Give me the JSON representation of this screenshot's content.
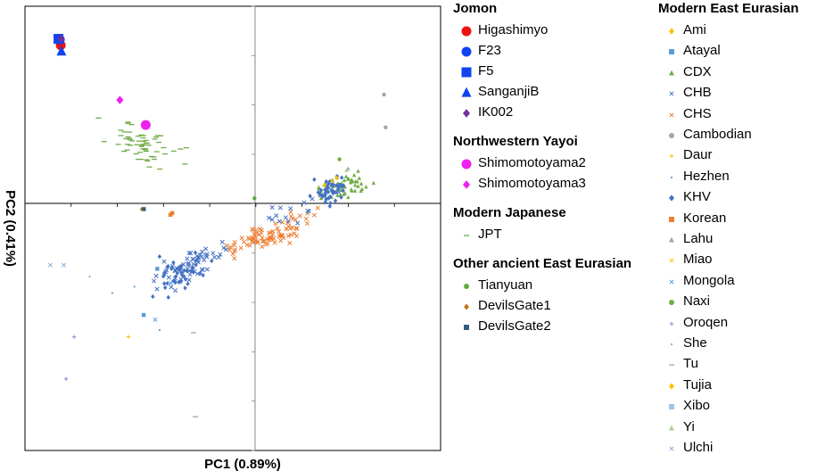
{
  "chart_data": {
    "type": "scatter",
    "xlabel": "PC1 (0.89%)",
    "ylabel": "PC2 (0.41%)",
    "xlim": [
      -0.1,
      0.08
    ],
    "ylim": [
      -0.1,
      0.08
    ],
    "grid": false,
    "legend_position": "right",
    "legend_groups": [
      {
        "title": "Jomon",
        "items": [
          {
            "name": "Higashimyo",
            "shape": "circle",
            "color": "#ee1111",
            "size": "large"
          },
          {
            "name": "F23",
            "shape": "circle",
            "color": "#1144ee",
            "size": "large"
          },
          {
            "name": "F5",
            "shape": "square",
            "color": "#1144ee",
            "size": "large"
          },
          {
            "name": "SanganjiB",
            "shape": "triangle",
            "color": "#1144ee",
            "size": "large"
          },
          {
            "name": "IK002",
            "shape": "diamond",
            "color": "#7030a0",
            "size": "medium"
          }
        ]
      },
      {
        "title": "Northwestern Yayoi",
        "items": [
          {
            "name": "Shimomotoyama2",
            "shape": "circle",
            "color": "#ee22ee",
            "size": "large"
          },
          {
            "name": "Shimomotoyama3",
            "shape": "diamond",
            "color": "#ee22ee",
            "size": "medium"
          }
        ]
      },
      {
        "title": "Modern Japanese",
        "items": [
          {
            "name": "JPT",
            "shape": "dash",
            "color": "#70ad47",
            "size": "small"
          }
        ]
      },
      {
        "title": "Other ancient East Eurasian",
        "items": [
          {
            "name": "Tianyuan",
            "shape": "circle",
            "color": "#5aab3c",
            "size": "small"
          },
          {
            "name": "DevilsGate1",
            "shape": "diamond",
            "color": "#bf7a16",
            "size": "small"
          },
          {
            "name": "DevilsGate2",
            "shape": "square",
            "color": "#355a7a",
            "size": "small"
          }
        ]
      },
      {
        "title": "Modern East Eurasian",
        "items": [
          {
            "name": "Ami",
            "shape": "diamond",
            "color": "#ffc000",
            "size": "small"
          },
          {
            "name": "Atayal",
            "shape": "square",
            "color": "#5b9bd5",
            "size": "small"
          },
          {
            "name": "CDX",
            "shape": "triangle",
            "color": "#70ad47",
            "size": "small"
          },
          {
            "name": "CHB",
            "shape": "x",
            "color": "#4472c4",
            "size": "small"
          },
          {
            "name": "CHS",
            "shape": "x",
            "color": "#ed7d31",
            "size": "small"
          },
          {
            "name": "Cambodian",
            "shape": "circle",
            "color": "#a5a5a5",
            "size": "small"
          },
          {
            "name": "Daur",
            "shape": "plus",
            "color": "#ffc000",
            "size": "small"
          },
          {
            "name": "Hezhen",
            "shape": "dot",
            "color": "#5b9bd5",
            "size": "small"
          },
          {
            "name": "KHV",
            "shape": "diamond",
            "color": "#4472c4",
            "size": "small"
          },
          {
            "name": "Korean",
            "shape": "square",
            "color": "#ed7d31",
            "size": "small"
          },
          {
            "name": "Lahu",
            "shape": "triangle",
            "color": "#a5a5a5",
            "size": "small"
          },
          {
            "name": "Miao",
            "shape": "x",
            "color": "#ffc000",
            "size": "small"
          },
          {
            "name": "Mongola",
            "shape": "x",
            "color": "#5b9bd5",
            "size": "small"
          },
          {
            "name": "Naxi",
            "shape": "circle",
            "color": "#70ad47",
            "size": "small"
          },
          {
            "name": "Oroqen",
            "shape": "plus",
            "color": "#7f8fd4",
            "size": "small"
          },
          {
            "name": "She",
            "shape": "dot",
            "color": "#d28ab8",
            "size": "small"
          },
          {
            "name": "Tu",
            "shape": "dash",
            "color": "#a5a5a5",
            "size": "small"
          },
          {
            "name": "Tujia",
            "shape": "diamond",
            "color": "#ffc000",
            "size": "small"
          },
          {
            "name": "Xibo",
            "shape": "square",
            "color": "#9dc3e6",
            "size": "small"
          },
          {
            "name": "Yi",
            "shape": "triangle",
            "color": "#a9d18e",
            "size": "small"
          },
          {
            "name": "Ulchi",
            "shape": "x",
            "color": "#8faadc",
            "size": "small"
          }
        ]
      }
    ],
    "points": [
      {
        "series": "Higashimyo",
        "x": -0.0845,
        "y": 0.0642
      },
      {
        "series": "F23",
        "x": -0.0849,
        "y": 0.0665
      },
      {
        "series": "F5",
        "x": -0.0855,
        "y": 0.0668
      },
      {
        "series": "SanganjiB",
        "x": -0.0842,
        "y": 0.0617
      },
      {
        "series": "IK002",
        "x": -0.0845,
        "y": 0.0668
      },
      {
        "series": "Shimomotoyama2",
        "x": -0.0477,
        "y": 0.0319
      },
      {
        "series": "Shimomotoyama3",
        "x": -0.0589,
        "y": 0.042
      },
      {
        "series": "Tianyuan",
        "x": -0.0006,
        "y": 0.0022
      },
      {
        "series": "DevilsGate1",
        "x": -0.0494,
        "y": -0.0022
      },
      {
        "series": "DevilsGate2",
        "x": -0.0485,
        "y": -0.0022
      },
      {
        "series": "Cambodian",
        "x": 0.0555,
        "y": 0.0442
      },
      {
        "series": "Cambodian",
        "x": 0.0562,
        "y": 0.0309
      },
      {
        "series": "Korean",
        "x": -0.037,
        "y": -0.0045
      },
      {
        "series": "Korean",
        "x": -0.0362,
        "y": -0.0038
      },
      {
        "series": "Atayal",
        "x": -0.0427,
        "y": -0.0264
      },
      {
        "series": "Atayal",
        "x": -0.0486,
        "y": -0.0451
      },
      {
        "series": "Mongola",
        "x": -0.0369,
        "y": -0.0322
      },
      {
        "series": "Mongola",
        "x": -0.0436,
        "y": -0.047
      },
      {
        "series": "Ulchi",
        "x": -0.089,
        "y": -0.0249
      },
      {
        "series": "Ulchi",
        "x": -0.0832,
        "y": -0.0249
      },
      {
        "series": "Hezhen",
        "x": -0.0622,
        "y": -0.0362
      },
      {
        "series": "Hezhen",
        "x": -0.0526,
        "y": -0.0336
      },
      {
        "series": "Hezhen",
        "x": -0.0417,
        "y": -0.0512
      },
      {
        "series": "Oroqen",
        "x": -0.0787,
        "y": -0.054
      },
      {
        "series": "Oroqen",
        "x": -0.0822,
        "y": -0.071
      },
      {
        "series": "Daur",
        "x": -0.0552,
        "y": -0.0539
      },
      {
        "series": "She",
        "x": -0.072,
        "y": -0.0295
      },
      {
        "series": "Tu",
        "x": -0.027,
        "y": -0.0523
      },
      {
        "series": "Tu",
        "x": -0.0262,
        "y": -0.0863
      },
      {
        "series": "Ami",
        "x": 0.035,
        "y": 0.0105
      },
      {
        "series": "Tujia",
        "x": 0.0298,
        "y": 0.0075
      },
      {
        "series": "Naxi",
        "x": 0.0362,
        "y": 0.018
      },
      {
        "series": "Lahu",
        "x": 0.04,
        "y": 0.0142
      },
      {
        "series": "Miao",
        "x": 0.033,
        "y": 0.0092
      },
      {
        "series": "Yi",
        "x": 0.0392,
        "y": 0.0135
      }
    ],
    "clusters": [
      {
        "series": "JPT",
        "count": 60,
        "center": [
          -0.045,
          0.0222
        ],
        "spread": [
          0.009,
          0.0032
        ],
        "tilt": -0.42
      },
      {
        "series": "CDX",
        "count": 55,
        "center": [
          0.0375,
          0.0071
        ],
        "spread": [
          0.0055,
          0.0022
        ],
        "tilt": 0.15
      },
      {
        "series": "KHV",
        "count": 45,
        "center": [
          0.033,
          0.0058
        ],
        "spread": [
          0.0035,
          0.0023
        ],
        "tilt": 0.0
      },
      {
        "series": "CHS",
        "count": 85,
        "center": [
          0.0075,
          -0.012
        ],
        "spread": [
          0.0105,
          0.0022
        ],
        "tilt": 0.38
      },
      {
        "series": "CHB",
        "count": 55,
        "center": [
          -0.028,
          -0.025
        ],
        "spread": [
          0.0095,
          0.003
        ],
        "tilt": 0.42
      },
      {
        "series": "KHV",
        "count": 45,
        "center": [
          -0.032,
          -0.0285
        ],
        "spread": [
          0.006,
          0.0032
        ],
        "tilt": 0.35
      },
      {
        "series": "CHB",
        "count": 18,
        "center": [
          0.021,
          -0.0015
        ],
        "spread": [
          0.009,
          0.002
        ],
        "tilt": 0.35
      }
    ]
  }
}
